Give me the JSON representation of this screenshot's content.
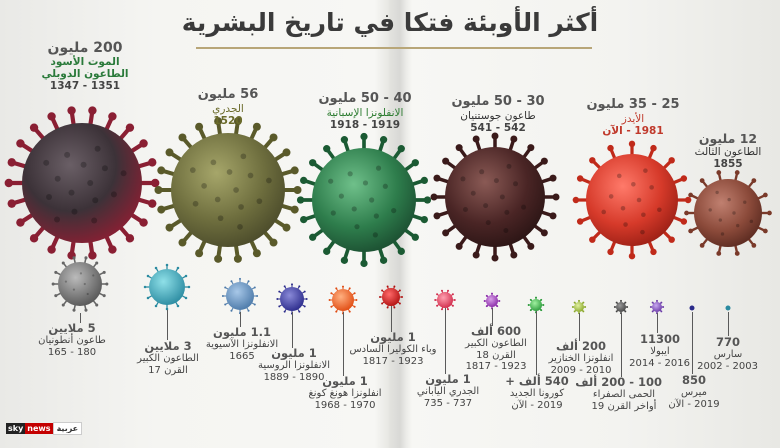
{
  "title": "أكثر الأوبئة فتكا في تاريخ البشرية",
  "logo": {
    "sky": "sky",
    "news": "news",
    "arabic": "عربية"
  },
  "colors": {
    "title_underline": "#b8a678",
    "accent_red": "#c0392b",
    "accent_green": "#2e7d32",
    "accent_olive": "#6b6b2a"
  },
  "large_pandemics": [
    {
      "deaths": "200 مليون",
      "name_line1": "الموت الأسود",
      "name_line2": "الطاعون الدوبلي",
      "years": "1351 - 1347",
      "color": "#7a1a2a"
    },
    {
      "deaths": "56 مليون",
      "name_line1": "الجدري",
      "name_line2": "",
      "years": "1520",
      "color": "#6b6b2a"
    },
    {
      "deaths": "40 - 50 مليون",
      "name_line1": "الانفلونزا الإسبانية",
      "name_line2": "",
      "years": "1919 - 1918",
      "color": "#2e7d32"
    },
    {
      "deaths": "30 - 50 مليون",
      "name_line1": "طاعون جوستنيان",
      "name_line2": "",
      "years": "542 - 541",
      "color": "#4a2020"
    },
    {
      "deaths": "25 - 35 مليون",
      "name_line1": "الأيدز",
      "name_line2": "",
      "years": "1981 - الآن",
      "color": "#c0392b"
    },
    {
      "deaths": "12 مليون",
      "name_line1": "الطاعون الثالث",
      "name_line2": "",
      "years": "1855",
      "color": "#8b4a3a"
    }
  ],
  "small_pandemics": [
    {
      "deaths": "5 ملايين",
      "name_line1": "طاعون أنطونيان",
      "name_line2": "180 - 165"
    },
    {
      "deaths": "3 ملايين",
      "name_line1": "الطاعون الكبير",
      "name_line2": "القرن 17"
    },
    {
      "deaths": "1.1 مليون",
      "name_line1": "الانفلونزا الآسيوية",
      "name_line2": "1665"
    },
    {
      "deaths": "1 مليون",
      "name_line1": "الانفلونزا الروسية",
      "name_line2": "1890 - 1889"
    },
    {
      "deaths": "1 مليون",
      "name_line1": "انفلونزا هونغ كونغ",
      "name_line2": "1970 - 1968"
    },
    {
      "deaths": "1 مليون",
      "name_line1": "وباء الكوليرا السادس",
      "name_line2": "1923 - 1817"
    },
    {
      "deaths": "1 مليون",
      "name_line1": "الجدري الياباني",
      "name_line2": "737 - 735"
    },
    {
      "deaths": "600 ألف",
      "name_line1": "الطاعون الكبير",
      "name_line2": "القرن 18",
      "name_line3": "1923 - 1817"
    },
    {
      "deaths": "540 ألف +",
      "name_line1": "كورونا الجديد",
      "name_line2": "2019 - الآن"
    },
    {
      "deaths": "200 ألف",
      "name_line1": "انفلونزا الخنازير",
      "name_line2": "2010 - 2009"
    },
    {
      "deaths": "100 - 200 ألف",
      "name_line1": "الحمى الصفراء",
      "name_line2": "أواخر القرن 19"
    },
    {
      "deaths": "11300",
      "name_line1": "ايبولا",
      "name_line2": "2016 - 2014"
    },
    {
      "deaths": "850",
      "name_line1": "ميرس",
      "name_line2": "2019 - الآن"
    },
    {
      "deaths": "770",
      "name_line1": "سارس",
      "name_line2": "2003 - 2002"
    }
  ]
}
